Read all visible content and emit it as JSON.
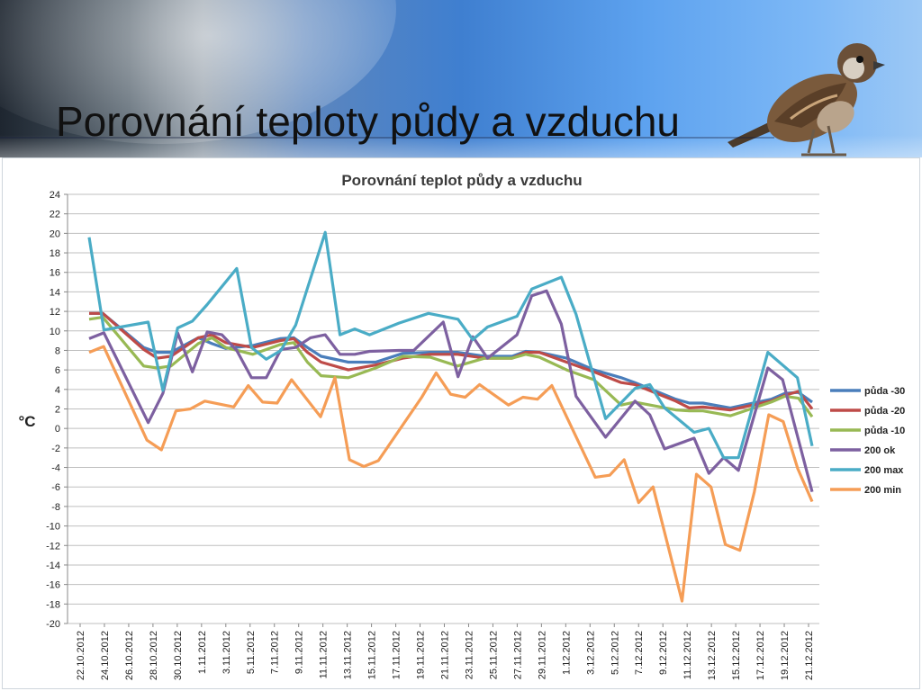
{
  "slide": {
    "title": "Porovnání teploty půdy a vzduchu"
  },
  "bird_icon": "sparrow-icon",
  "chart_data": {
    "type": "line",
    "title": "Porovnání teplot půdy a vzduchu",
    "ylabel": "°C",
    "xlabel": "",
    "ylim": [
      -20,
      24
    ],
    "yticks": [
      24,
      22,
      20,
      18,
      16,
      14,
      12,
      10,
      8,
      6,
      4,
      2,
      0,
      -2,
      -4,
      -6,
      -8,
      -10,
      -12,
      -14,
      -16,
      -18,
      -20
    ],
    "grid": true,
    "legend_position": "right",
    "x_tick_labels": [
      "22.10.2012",
      "24.10.2012",
      "26.10.2012",
      "28.10.2012",
      "30.10.2012",
      "1.11.2012",
      "3.11.2012",
      "5.11.2012",
      "7.11.2012",
      "9.11.2012",
      "11.11.2012",
      "13.11.2012",
      "15.11.2012",
      "17.11.2012",
      "19.11.2012",
      "21.11.2012",
      "23.11.2012",
      "25.11.2012",
      "27.11.2012",
      "29.11.2012",
      "1.12.2012",
      "3.12.2012",
      "5.12.2012",
      "7.12.2012",
      "9.12.2012",
      "11.12.2012",
      "13.12.2012",
      "15.12.2012",
      "17.12.2012",
      "19.12.2012",
      "21.12.2012"
    ],
    "series": [
      {
        "name": "půda -30",
        "color": "#4a7ebb",
        "values": [
          11.8,
          11.8,
          null,
          null,
          8.3,
          7.8,
          7.8,
          null,
          9.3,
          8.7,
          8.2,
          null,
          8.5,
          null,
          9.2,
          9.3,
          8.3,
          7.4,
          null,
          6.8,
          null,
          6.8,
          null,
          7.7,
          null,
          7.8,
          null,
          7.8,
          null,
          7.4,
          null,
          7.4,
          7.9,
          7.8,
          null,
          7.2,
          null,
          6.0,
          null,
          5.2,
          4.7,
          null,
          null,
          3.0,
          2.6,
          2.6,
          null,
          2.1,
          null,
          null,
          3.0,
          3.6,
          3.7,
          2.7
        ]
      },
      {
        "name": "půda -20",
        "color": "#be4b48",
        "values": [
          11.8,
          11.8,
          null,
          null,
          8.1,
          7.2,
          7.4,
          null,
          9.3,
          9.6,
          8.8,
          null,
          8.3,
          null,
          9.0,
          9.2,
          7.8,
          6.8,
          null,
          6.0,
          null,
          6.5,
          null,
          7.2,
          null,
          7.6,
          null,
          7.6,
          null,
          7.2,
          null,
          7.2,
          7.8,
          7.8,
          null,
          6.8,
          null,
          5.8,
          null,
          4.7,
          4.5,
          null,
          null,
          2.8,
          2.1,
          2.2,
          null,
          1.9,
          null,
          null,
          2.8,
          3.4,
          3.8,
          2.0
        ]
      },
      {
        "name": "půda -10",
        "color": "#98b954",
        "values": [
          11.2,
          11.4,
          null,
          null,
          6.4,
          6.2,
          6.4,
          null,
          8.7,
          9.3,
          8.3,
          null,
          7.6,
          null,
          8.6,
          8.8,
          6.8,
          5.4,
          null,
          5.2,
          null,
          6.2,
          null,
          7.4,
          null,
          7.3,
          null,
          6.4,
          null,
          7.2,
          null,
          7.2,
          7.6,
          7.3,
          null,
          6.0,
          null,
          5.0,
          null,
          2.4,
          2.7,
          null,
          null,
          1.9,
          1.8,
          1.8,
          null,
          1.3,
          null,
          null,
          2.7,
          3.3,
          3.1,
          1.2
        ]
      },
      {
        "name": "200 ok",
        "color": "#7d60a0",
        "values": [
          9.2,
          9.8,
          null,
          null,
          0.6,
          3.6,
          9.8,
          5.8,
          9.9,
          9.6,
          8.0,
          5.2,
          5.2,
          8.1,
          8.3,
          9.3,
          9.6,
          7.6,
          7.6,
          7.9,
          null,
          8.0,
          8.0,
          null,
          10.9,
          5.3,
          9.4,
          7.2,
          null,
          9.6,
          13.6,
          14.1,
          10.7,
          3.3,
          null,
          -0.9,
          null,
          2.8,
          1.4,
          -2.1,
          null,
          -1.0,
          -4.6,
          -3.0,
          -4.3,
          null,
          6.2,
          5.0,
          null,
          -6.5
        ]
      },
      {
        "name": "200 max",
        "color": "#4aacc6",
        "values": [
          19.6,
          10.1,
          null,
          null,
          10.9,
          3.9,
          10.3,
          11.0,
          12.7,
          null,
          16.4,
          8.3,
          7.1,
          8.0,
          10.6,
          null,
          20.1,
          9.6,
          10.2,
          9.6,
          null,
          10.8,
          null,
          11.8,
          null,
          11.2,
          9.1,
          10.4,
          null,
          11.5,
          14.3,
          null,
          15.5,
          11.7,
          null,
          1.0,
          null,
          4.1,
          4.5,
          2.1,
          null,
          -0.4,
          0.0,
          -3.0,
          -3.0,
          null,
          7.8,
          null,
          5.2,
          -1.8
        ]
      },
      {
        "name": "200 min",
        "color": "#f59d56",
        "values": [
          7.8,
          8.4,
          null,
          null,
          -1.2,
          -2.2,
          1.8,
          2.0,
          2.8,
          null,
          2.2,
          4.4,
          2.7,
          2.6,
          5.0,
          null,
          1.2,
          5.2,
          -3.2,
          -3.9,
          -3.3,
          null,
          null,
          3.2,
          5.7,
          3.5,
          3.2,
          4.5,
          null,
          2.4,
          3.2,
          3.0,
          4.4,
          null,
          null,
          -5.0,
          -4.8,
          -3.2,
          -7.6,
          -6.0,
          null,
          -17.7,
          -4.7,
          -6.0,
          -11.9,
          -12.5,
          -6.5,
          1.4,
          0.7,
          -4.1,
          -7.5
        ]
      }
    ]
  }
}
